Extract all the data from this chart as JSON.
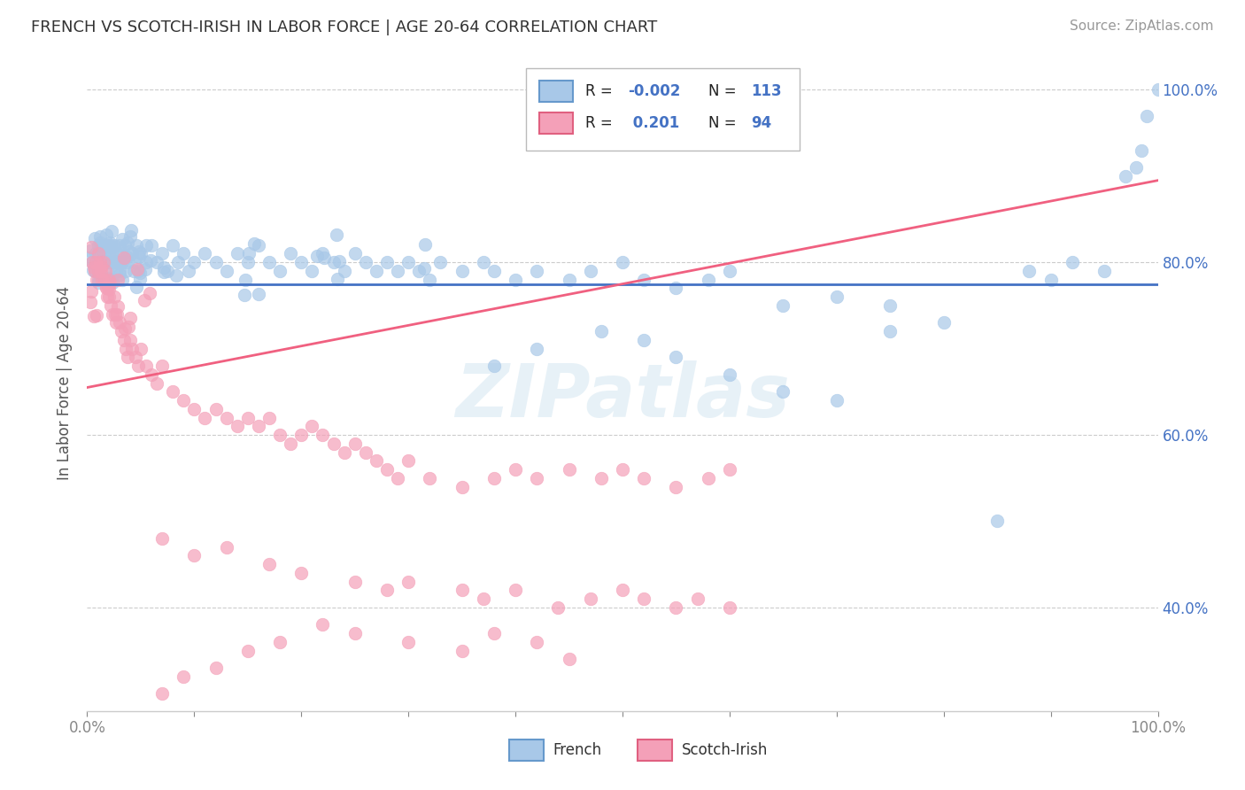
{
  "title": "FRENCH VS SCOTCH-IRISH IN LABOR FORCE | AGE 20-64 CORRELATION CHART",
  "source": "Source: ZipAtlas.com",
  "ylabel": "In Labor Force | Age 20-64",
  "xmin": 0.0,
  "xmax": 1.0,
  "ymin": 0.28,
  "ymax": 1.04,
  "ytick_positions": [
    0.4,
    0.6,
    0.8,
    1.0
  ],
  "french_color": "#a8c8e8",
  "scotch_color": "#f4a0b8",
  "french_line_color": "#4472c4",
  "scotch_line_color": "#f06080",
  "french_line_y0": 0.775,
  "french_line_y1": 0.775,
  "scotch_line_y0": 0.655,
  "scotch_line_y1": 0.895,
  "watermark": "ZIPatlas",
  "title_fontsize": 13,
  "source_fontsize": 11,
  "scatter_size": 110,
  "french_scatter_x": [
    0.005,
    0.007,
    0.008,
    0.009,
    0.01,
    0.01,
    0.01,
    0.012,
    0.012,
    0.013,
    0.014,
    0.014,
    0.015,
    0.015,
    0.016,
    0.016,
    0.017,
    0.018,
    0.019,
    0.02,
    0.02,
    0.02,
    0.022,
    0.022,
    0.023,
    0.024,
    0.025,
    0.026,
    0.027,
    0.028,
    0.03,
    0.03,
    0.031,
    0.032,
    0.033,
    0.035,
    0.036,
    0.038,
    0.04,
    0.042,
    0.044,
    0.046,
    0.048,
    0.05,
    0.055,
    0.06,
    0.065,
    0.07,
    0.075,
    0.08,
    0.085,
    0.09,
    0.095,
    0.1,
    0.11,
    0.12,
    0.13,
    0.14,
    0.15,
    0.16,
    0.17,
    0.18,
    0.19,
    0.2,
    0.21,
    0.22,
    0.23,
    0.24,
    0.25,
    0.26,
    0.27,
    0.28,
    0.29,
    0.3,
    0.31,
    0.32,
    0.33,
    0.35,
    0.37,
    0.38,
    0.4,
    0.42,
    0.45,
    0.47,
    0.5,
    0.52,
    0.55,
    0.58,
    0.6,
    0.65,
    0.7,
    0.75,
    0.8,
    0.85,
    0.88,
    0.9,
    0.92,
    0.95,
    0.97,
    0.98,
    0.985,
    0.99,
    1.0,
    0.38,
    0.42,
    0.48,
    0.52,
    0.55,
    0.6,
    0.65,
    0.7,
    0.75
  ],
  "french_scatter_y": [
    0.8,
    0.79,
    0.81,
    0.8,
    0.82,
    0.79,
    0.78,
    0.81,
    0.8,
    0.82,
    0.8,
    0.78,
    0.81,
    0.8,
    0.82,
    0.78,
    0.8,
    0.82,
    0.79,
    0.81,
    0.8,
    0.78,
    0.82,
    0.8,
    0.81,
    0.8,
    0.82,
    0.8,
    0.79,
    0.81,
    0.82,
    0.79,
    0.8,
    0.81,
    0.8,
    0.82,
    0.79,
    0.8,
    0.83,
    0.81,
    0.8,
    0.82,
    0.79,
    0.81,
    0.8,
    0.82,
    0.8,
    0.81,
    0.79,
    0.82,
    0.8,
    0.81,
    0.79,
    0.8,
    0.81,
    0.8,
    0.79,
    0.81,
    0.8,
    0.82,
    0.8,
    0.79,
    0.81,
    0.8,
    0.79,
    0.81,
    0.8,
    0.79,
    0.81,
    0.8,
    0.79,
    0.8,
    0.79,
    0.8,
    0.79,
    0.78,
    0.8,
    0.79,
    0.8,
    0.79,
    0.78,
    0.79,
    0.78,
    0.79,
    0.8,
    0.78,
    0.77,
    0.78,
    0.79,
    0.75,
    0.76,
    0.75,
    0.73,
    0.5,
    0.79,
    0.78,
    0.8,
    0.79,
    0.9,
    0.91,
    0.93,
    0.97,
    1.0,
    0.68,
    0.7,
    0.72,
    0.71,
    0.69,
    0.67,
    0.65,
    0.64,
    0.72
  ],
  "scotch_scatter_x": [
    0.005,
    0.007,
    0.008,
    0.009,
    0.01,
    0.01,
    0.012,
    0.013,
    0.014,
    0.015,
    0.016,
    0.017,
    0.018,
    0.019,
    0.02,
    0.02,
    0.022,
    0.024,
    0.025,
    0.026,
    0.027,
    0.028,
    0.03,
    0.032,
    0.034,
    0.036,
    0.038,
    0.04,
    0.042,
    0.045,
    0.048,
    0.05,
    0.055,
    0.06,
    0.065,
    0.07,
    0.08,
    0.09,
    0.1,
    0.11,
    0.12,
    0.13,
    0.14,
    0.15,
    0.16,
    0.17,
    0.18,
    0.19,
    0.2,
    0.21,
    0.22,
    0.23,
    0.24,
    0.25,
    0.26,
    0.27,
    0.28,
    0.29,
    0.3,
    0.32,
    0.35,
    0.38,
    0.4,
    0.42,
    0.45,
    0.48,
    0.5,
    0.52,
    0.55,
    0.58,
    0.6,
    0.07,
    0.1,
    0.13,
    0.17,
    0.2,
    0.25,
    0.28,
    0.3,
    0.35,
    0.37,
    0.4,
    0.44,
    0.47,
    0.5,
    0.52,
    0.55,
    0.57,
    0.6,
    0.3,
    0.35,
    0.38,
    0.42,
    0.45
  ],
  "scotch_scatter_y": [
    0.8,
    0.79,
    0.8,
    0.78,
    0.81,
    0.79,
    0.8,
    0.79,
    0.78,
    0.8,
    0.78,
    0.79,
    0.77,
    0.76,
    0.78,
    0.76,
    0.75,
    0.74,
    0.76,
    0.74,
    0.73,
    0.74,
    0.73,
    0.72,
    0.71,
    0.7,
    0.69,
    0.71,
    0.7,
    0.69,
    0.68,
    0.7,
    0.68,
    0.67,
    0.66,
    0.68,
    0.65,
    0.64,
    0.63,
    0.62,
    0.63,
    0.62,
    0.61,
    0.62,
    0.61,
    0.62,
    0.6,
    0.59,
    0.6,
    0.61,
    0.6,
    0.59,
    0.58,
    0.59,
    0.58,
    0.57,
    0.56,
    0.55,
    0.57,
    0.55,
    0.54,
    0.55,
    0.56,
    0.55,
    0.56,
    0.55,
    0.56,
    0.55,
    0.54,
    0.55,
    0.56,
    0.48,
    0.46,
    0.47,
    0.45,
    0.44,
    0.43,
    0.42,
    0.43,
    0.42,
    0.41,
    0.42,
    0.4,
    0.41,
    0.42,
    0.41,
    0.4,
    0.41,
    0.4,
    0.36,
    0.35,
    0.37,
    0.36,
    0.34
  ]
}
